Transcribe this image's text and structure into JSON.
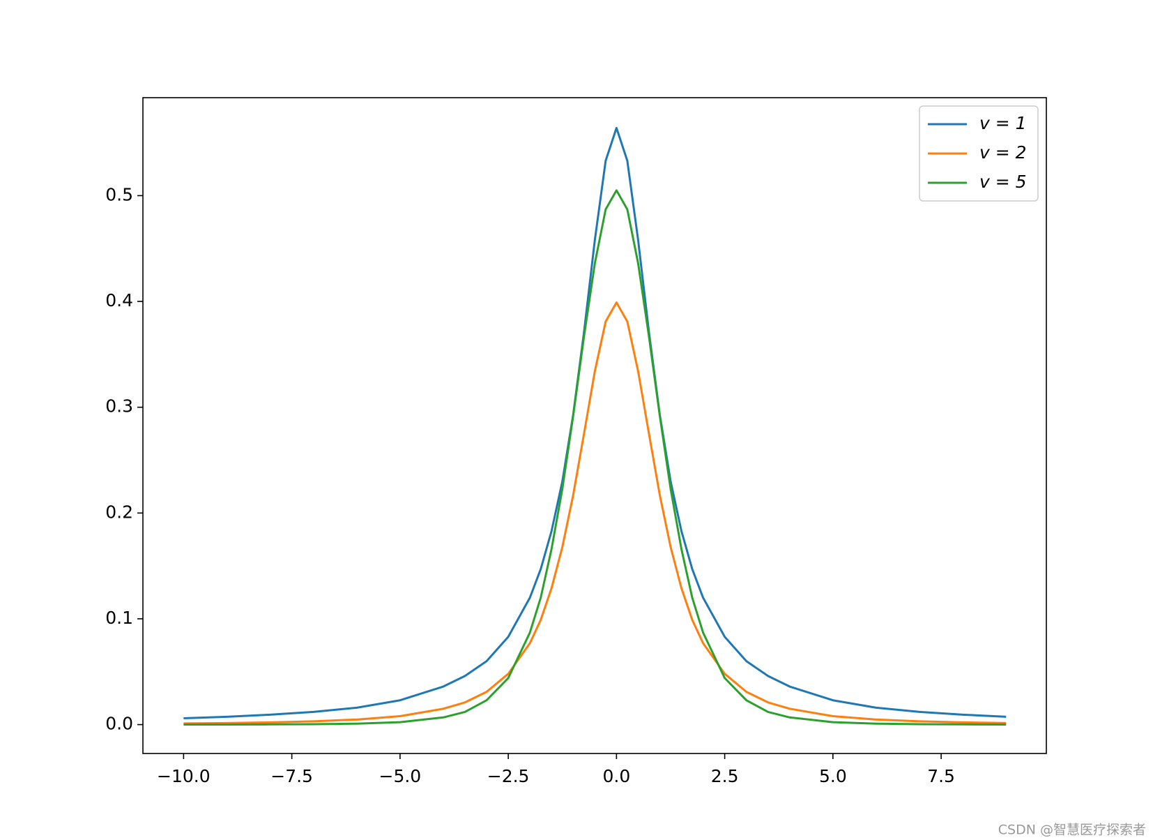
{
  "chart_data": {
    "type": "line",
    "x": [
      -10,
      -9,
      -8,
      -7,
      -6,
      -5,
      -4,
      -3.5,
      -3,
      -2.5,
      -2,
      -1.75,
      -1.5,
      -1.25,
      -1,
      -0.75,
      -0.5,
      -0.25,
      0,
      0.25,
      0.5,
      0.75,
      1,
      1.25,
      1.5,
      1.75,
      2,
      2.5,
      3,
      3.5,
      4,
      5,
      6,
      7,
      8,
      9
    ],
    "series": [
      {
        "name": "v = 1",
        "color": "#1f77b4",
        "values": [
          0.006,
          0.0074,
          0.0094,
          0.012,
          0.016,
          0.023,
          0.036,
          0.046,
          0.06,
          0.083,
          0.12,
          0.147,
          0.183,
          0.23,
          0.293,
          0.371,
          0.458,
          0.533,
          0.564,
          0.533,
          0.458,
          0.371,
          0.293,
          0.23,
          0.183,
          0.147,
          0.12,
          0.083,
          0.06,
          0.046,
          0.036,
          0.023,
          0.016,
          0.012,
          0.0094,
          0.0074
        ]
      },
      {
        "name": "v = 2",
        "color": "#ff7f0e",
        "values": [
          0.0011,
          0.0015,
          0.0021,
          0.0031,
          0.0048,
          0.008,
          0.015,
          0.021,
          0.031,
          0.048,
          0.077,
          0.099,
          0.129,
          0.168,
          0.217,
          0.275,
          0.334,
          0.381,
          0.399,
          0.381,
          0.334,
          0.275,
          0.217,
          0.168,
          0.129,
          0.099,
          0.077,
          0.048,
          0.031,
          0.021,
          0.015,
          0.008,
          0.0048,
          0.0031,
          0.0021,
          0.0015
        ]
      },
      {
        "name": "v = 5",
        "color": "#2ca02c",
        "values": [
          0.0001,
          0.0001,
          0.0002,
          0.0004,
          0.0009,
          0.0023,
          0.0068,
          0.012,
          0.023,
          0.044,
          0.087,
          0.12,
          0.166,
          0.223,
          0.292,
          0.367,
          0.436,
          0.487,
          0.505,
          0.487,
          0.436,
          0.367,
          0.292,
          0.223,
          0.166,
          0.12,
          0.087,
          0.044,
          0.023,
          0.012,
          0.0068,
          0.0023,
          0.0009,
          0.0004,
          0.0002,
          0.0001
        ]
      }
    ],
    "xlim": [
      -10.94,
      9.93
    ],
    "ylim": [
      -0.0273,
      0.5926
    ],
    "xticks": [
      {
        "value": -10,
        "label": "−10.0"
      },
      {
        "value": -7.5,
        "label": "−7.5"
      },
      {
        "value": -5,
        "label": "−5.0"
      },
      {
        "value": -2.5,
        "label": "−2.5"
      },
      {
        "value": 0,
        "label": "0.0"
      },
      {
        "value": 2.5,
        "label": "2.5"
      },
      {
        "value": 5,
        "label": "5.0"
      },
      {
        "value": 7.5,
        "label": "7.5"
      }
    ],
    "yticks": [
      {
        "value": 0,
        "label": "0.0"
      },
      0.1,
      0.2,
      0.3,
      0.4,
      0.5
    ],
    "legend": "upper right",
    "watermark": "CSDN @智慧医疗探索者"
  }
}
